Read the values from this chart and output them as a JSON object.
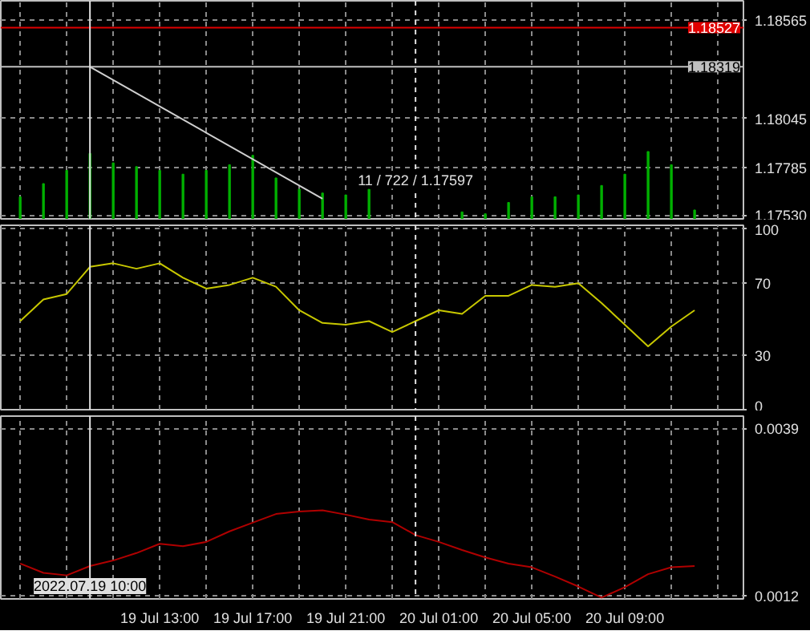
{
  "chart_data": [
    {
      "type": "bar",
      "x": [
        "2022-07-19T07:00",
        "2022-07-19T08:00",
        "2022-07-19T09:00",
        "2022-07-19T10:00",
        "2022-07-19T11:00",
        "2022-07-19T12:00",
        "2022-07-19T13:00",
        "2022-07-19T14:00",
        "2022-07-19T15:00",
        "2022-07-19T16:00",
        "2022-07-19T17:00",
        "2022-07-19T18:00",
        "2022-07-19T19:00",
        "2022-07-19T20:00",
        "2022-07-19T21:00",
        "2022-07-19T22:00",
        "2022-07-19T23:00",
        "2022-07-20T00:00",
        "2022-07-20T01:00",
        "2022-07-20T02:00",
        "2022-07-20T03:00",
        "2022-07-20T04:00",
        "2022-07-20T05:00",
        "2022-07-20T06:00",
        "2022-07-20T07:00",
        "2022-07-20T08:00",
        "2022-07-20T09:00",
        "2022-07-20T10:00",
        "2022-07-20T11:00",
        "2022-07-20T12:00"
      ],
      "series": [
        {
          "type": "bar",
          "color": "#00b000",
          "values": [
            1.1763,
            1.177,
            1.1777,
            1.1786,
            1.1781,
            1.1779,
            1.1777,
            1.1775,
            1.1777,
            1.178,
            1.1785,
            1.1773,
            1.1767,
            1.1765,
            1.1764,
            1.1767,
            null,
            null,
            null,
            1.1755,
            1.1754,
            1.176,
            1.1763,
            1.1763,
            1.1764,
            1.1769,
            1.1775,
            1.1787,
            1.178,
            1.1756
          ]
        },
        {
          "type": "line",
          "color": "#d0d0d0",
          "x": [
            "2022-07-19T10:00",
            "2022-07-19T20:00"
          ],
          "values": [
            1.18319,
            1.1762
          ]
        }
      ],
      "xlim": [
        "2022-07-19T06:10",
        "2022-07-20T14:06"
      ],
      "ylim": [
        1.17513,
        1.18669
      ],
      "xticks": [
        {
          "value": "2022-07-19T07:00",
          "label": null
        },
        {
          "value": "2022-07-19T09:00",
          "label": null
        },
        {
          "value": "2022-07-19T11:00",
          "label": null
        },
        {
          "value": "2022-07-19T13:00",
          "label": null
        },
        {
          "value": "2022-07-19T15:00",
          "label": null
        },
        {
          "value": "2022-07-19T17:00",
          "label": null
        },
        {
          "value": "2022-07-19T19:00",
          "label": null
        },
        {
          "value": "2022-07-19T21:00",
          "label": null
        },
        {
          "value": "2022-07-19T23:00",
          "label": null
        },
        {
          "value": "2022-07-20T01:00",
          "label": null
        },
        {
          "value": "2022-07-20T03:00",
          "label": null
        },
        {
          "value": "2022-07-20T05:00",
          "label": null
        },
        {
          "value": "2022-07-20T07:00",
          "label": null
        },
        {
          "value": "2022-07-20T09:00",
          "label": null
        },
        {
          "value": "2022-07-20T11:00",
          "label": null
        },
        {
          "value": "2022-07-20T13:00",
          "label": null
        }
      ],
      "yticks": [
        {
          "value": 1.1753,
          "label": "1.17530"
        },
        {
          "value": 1.17785,
          "label": "1.17785"
        },
        {
          "value": 1.18045,
          "label": "1.18045"
        },
        {
          "value": 1.18565,
          "label": "1.18565"
        }
      ],
      "tick_labels": "y",
      "grid": true,
      "ref_lines": [
        {
          "axis": "y",
          "value": 1.18527,
          "label": "1.18527",
          "color": "#e00000",
          "line_style": "solid"
        },
        {
          "axis": "y",
          "value": 1.18319,
          "label": "1.18319",
          "color": "#c0c0c0",
          "line_style": "solid"
        },
        {
          "axis": "x",
          "value": "2022-07-19T10:00",
          "color": "#e0e0e0",
          "line_style": "solid"
        },
        {
          "axis": "x",
          "value": "2022-07-20T00:00",
          "color": "#e0e0e0",
          "line_style": "dashed"
        }
      ],
      "annotations": [
        {
          "text": "11 / 722 / 1.17597",
          "x": "2022-07-19T20:00",
          "y": 1.17597
        }
      ]
    },
    {
      "type": "line",
      "x": [
        "2022-07-19T07:00",
        "2022-07-19T08:00",
        "2022-07-19T09:00",
        "2022-07-19T10:00",
        "2022-07-19T11:00",
        "2022-07-19T12:00",
        "2022-07-19T13:00",
        "2022-07-19T14:00",
        "2022-07-19T15:00",
        "2022-07-19T16:00",
        "2022-07-19T17:00",
        "2022-07-19T18:00",
        "2022-07-19T19:00",
        "2022-07-19T20:00",
        "2022-07-19T21:00",
        "2022-07-19T22:00",
        "2022-07-19T23:00",
        "2022-07-20T00:00",
        "2022-07-20T01:00",
        "2022-07-20T02:00",
        "2022-07-20T03:00",
        "2022-07-20T04:00",
        "2022-07-20T05:00",
        "2022-07-20T06:00",
        "2022-07-20T07:00",
        "2022-07-20T08:00",
        "2022-07-20T09:00",
        "2022-07-20T10:00",
        "2022-07-20T11:00",
        "2022-07-20T12:00"
      ],
      "series": [
        {
          "color": "#c8c800",
          "values": [
            49,
            61,
            64,
            79,
            81,
            78,
            81,
            73,
            67,
            69,
            73,
            68,
            55,
            48,
            47,
            49,
            43,
            49,
            55,
            53,
            63,
            63,
            69,
            68,
            70,
            59,
            47,
            35,
            46,
            55
          ]
        }
      ],
      "xlim": [
        "2022-07-19T06:10",
        "2022-07-20T14:06"
      ],
      "ylim": [
        0,
        102
      ],
      "xticks": [
        {
          "value": "2022-07-19T07:00",
          "label": null
        },
        {
          "value": "2022-07-19T09:00",
          "label": null
        },
        {
          "value": "2022-07-19T11:00",
          "label": null
        },
        {
          "value": "2022-07-19T13:00",
          "label": null
        },
        {
          "value": "2022-07-19T15:00",
          "label": null
        },
        {
          "value": "2022-07-19T17:00",
          "label": null
        },
        {
          "value": "2022-07-19T19:00",
          "label": null
        },
        {
          "value": "2022-07-19T21:00",
          "label": null
        },
        {
          "value": "2022-07-19T23:00",
          "label": null
        },
        {
          "value": "2022-07-20T01:00",
          "label": null
        },
        {
          "value": "2022-07-20T03:00",
          "label": null
        },
        {
          "value": "2022-07-20T05:00",
          "label": null
        },
        {
          "value": "2022-07-20T07:00",
          "label": null
        },
        {
          "value": "2022-07-20T09:00",
          "label": null
        },
        {
          "value": "2022-07-20T11:00",
          "label": null
        },
        {
          "value": "2022-07-20T13:00",
          "label": null
        }
      ],
      "yticks": [
        0,
        30,
        70,
        100
      ],
      "tick_labels": "y",
      "grid": true,
      "line_style": "solid",
      "ref_lines": [
        {
          "axis": "x",
          "value": "2022-07-19T10:00",
          "color": "#e0e0e0",
          "line_style": "solid"
        },
        {
          "axis": "x",
          "value": "2022-07-20T00:00",
          "color": "#e0e0e0",
          "line_style": "dashed"
        }
      ]
    },
    {
      "type": "line",
      "x": [
        "2022-07-19T07:00",
        "2022-07-19T08:00",
        "2022-07-19T09:00",
        "2022-07-19T10:00",
        "2022-07-19T11:00",
        "2022-07-19T12:00",
        "2022-07-19T13:00",
        "2022-07-19T14:00",
        "2022-07-19T15:00",
        "2022-07-19T16:00",
        "2022-07-19T17:00",
        "2022-07-19T18:00",
        "2022-07-19T19:00",
        "2022-07-19T20:00",
        "2022-07-19T21:00",
        "2022-07-19T22:00",
        "2022-07-19T23:00",
        "2022-07-20T00:00",
        "2022-07-20T01:00",
        "2022-07-20T02:00",
        "2022-07-20T03:00",
        "2022-07-20T04:00",
        "2022-07-20T05:00",
        "2022-07-20T06:00",
        "2022-07-20T07:00",
        "2022-07-20T08:00",
        "2022-07-20T09:00",
        "2022-07-20T10:00",
        "2022-07-20T11:00",
        "2022-07-20T12:00"
      ],
      "series": [
        {
          "color": "#b00000",
          "values": [
            0.00172,
            0.00157,
            0.00153,
            0.00168,
            0.00177,
            0.00189,
            0.00204,
            0.002,
            0.00207,
            0.00224,
            0.00238,
            0.00252,
            0.00256,
            0.00258,
            0.00251,
            0.00243,
            0.00239,
            0.00218,
            0.00207,
            0.00194,
            0.00182,
            0.00172,
            0.00166,
            0.00151,
            0.00135,
            0.00117,
            0.00134,
            0.00155,
            0.00166,
            0.00168
          ]
        }
      ],
      "xlim": [
        "2022-07-19T06:10",
        "2022-07-20T14:06"
      ],
      "ylim": [
        0.00115,
        0.0041
      ],
      "xticks": [
        {
          "value": "2022-07-19T07:00",
          "label": null
        },
        {
          "value": "2022-07-19T09:00",
          "label": null
        },
        {
          "value": "2022-07-19T11:00",
          "label": null
        },
        {
          "value": "2022-07-19T13:00",
          "label": "19 Jul 13:00"
        },
        {
          "value": "2022-07-19T15:00",
          "label": null
        },
        {
          "value": "2022-07-19T17:00",
          "label": "19 Jul 17:00"
        },
        {
          "value": "2022-07-19T19:00",
          "label": null
        },
        {
          "value": "2022-07-19T21:00",
          "label": "19 Jul 21:00"
        },
        {
          "value": "2022-07-19T23:00",
          "label": null
        },
        {
          "value": "2022-07-20T01:00",
          "label": "20 Jul 01:00"
        },
        {
          "value": "2022-07-20T03:00",
          "label": null
        },
        {
          "value": "2022-07-20T05:00",
          "label": "20 Jul 05:00"
        },
        {
          "value": "2022-07-20T07:00",
          "label": null
        },
        {
          "value": "2022-07-20T09:00",
          "label": "20 Jul 09:00"
        },
        {
          "value": "2022-07-20T11:00",
          "label": null
        },
        {
          "value": "2022-07-20T13:00",
          "label": null
        }
      ],
      "yticks": [
        0.0039,
        0.0012
      ],
      "grid": true,
      "line_style": "solid",
      "ref_lines": [
        {
          "axis": "x",
          "value": "2022-07-19T10:00",
          "label": "2022.07.19 10:00",
          "color": "#e0e0e0",
          "line_style": "solid"
        },
        {
          "axis": "x",
          "value": "2022-07-20T00:00",
          "color": "#e0e0e0",
          "line_style": "dashed"
        }
      ]
    }
  ]
}
